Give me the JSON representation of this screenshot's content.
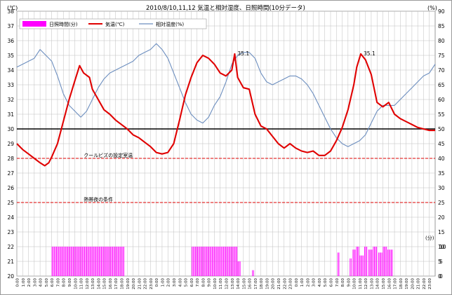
{
  "chart_data": {
    "type": "line",
    "title": "2010/8/10,11,12 気温と相対湿度、日照時間(10分データ)",
    "y_left_unit": "(℃)",
    "y_right_unit": "(%)",
    "sunshine_unit": "(分)",
    "ylim_left": [
      20,
      38
    ],
    "ylim_right": [
      0,
      90
    ],
    "sunshine_ylim": [
      0,
      10
    ],
    "sunshine_ticks": [
      0,
      5,
      10
    ],
    "y_left_ticks": [
      20,
      21,
      22,
      23,
      24,
      25,
      26,
      27,
      28,
      29,
      30,
      31,
      32,
      33,
      34,
      35,
      36,
      37,
      38
    ],
    "y_right_ticks": [
      0,
      5,
      10,
      15,
      20,
      25,
      30,
      35,
      40,
      45,
      50,
      55,
      60,
      65,
      70,
      75,
      80,
      85,
      90
    ],
    "x_ticks": [
      "0:00",
      "1:00",
      "2:00",
      "3:00",
      "4:00",
      "5:00",
      "6:00",
      "7:00",
      "8:00",
      "9:00",
      "10:00",
      "11:00",
      "12:00",
      "13:00",
      "14:00",
      "15:00",
      "16:00",
      "17:00",
      "18:00",
      "19:00",
      "20:00",
      "21:00",
      "22:00",
      "23:00",
      "0:00",
      "1:00",
      "2:00",
      "3:00",
      "4:00",
      "5:00",
      "6:00",
      "7:00",
      "8:00",
      "9:00",
      "10:00",
      "11:00",
      "12:00",
      "13:00",
      "14:00",
      "15:00",
      "16:00",
      "17:00",
      "18:00",
      "19:00",
      "20:00",
      "21:00",
      "22:00",
      "23:00",
      "0:00",
      "1:00",
      "2:00",
      "3:00",
      "4:00",
      "5:00",
      "6:00",
      "7:00",
      "8:00",
      "9:00",
      "10:00",
      "11:00",
      "12:00",
      "13:00",
      "14:00",
      "15:00",
      "16:00",
      "17:00",
      "18:00",
      "19:00",
      "20:00",
      "21:00",
      "22:00",
      "23:00"
    ],
    "grid": true,
    "legend_position": "top",
    "legend": [
      {
        "label": "日照時間(分)",
        "color": "#ff00ff",
        "kind": "bar"
      },
      {
        "label": "気温(℃)",
        "color": "#e00000",
        "kind": "line"
      },
      {
        "label": "相対湿度(%)",
        "color": "#6c8ebf",
        "kind": "line"
      }
    ],
    "reference_lines": [
      {
        "value": 30,
        "color": "#000000",
        "dashed": false,
        "label": ""
      },
      {
        "value": 28,
        "color": "#e00000",
        "dashed": true,
        "label": "クールビズの設定室温"
      },
      {
        "value": 25,
        "color": "#e00000",
        "dashed": true,
        "label": "熱帯夜の条件"
      }
    ],
    "annotations": [
      {
        "text": "35.1",
        "x": 37.5,
        "y": 35.1
      },
      {
        "text": "35.1",
        "x": 59.2,
        "y": 35.1
      }
    ],
    "temperature": {
      "name": "気温(℃)",
      "color": "#e00000",
      "x": [
        0,
        1,
        2,
        3,
        4,
        4.8,
        5.5,
        6,
        7,
        8,
        9,
        10,
        10.8,
        11.5,
        12.5,
        13,
        14,
        15,
        16,
        17,
        18,
        19,
        20,
        21,
        22,
        23,
        24,
        25,
        26,
        27,
        28,
        29,
        30,
        31,
        32,
        33,
        34,
        35,
        36,
        37,
        37.5,
        38,
        39,
        40,
        41,
        42,
        43,
        44,
        45,
        46,
        47,
        48,
        49,
        50,
        51,
        52,
        53,
        54,
        55,
        56,
        57,
        58,
        58.5,
        59.2,
        60,
        61,
        62,
        63,
        64,
        65,
        66,
        67,
        68,
        69,
        70,
        71,
        72
      ],
      "y": [
        29.0,
        28.6,
        28.3,
        28.0,
        27.7,
        27.5,
        27.7,
        28.1,
        29.0,
        30.5,
        32.0,
        33.3,
        34.3,
        33.8,
        33.5,
        32.7,
        32.0,
        31.3,
        31.0,
        30.6,
        30.3,
        30.0,
        29.6,
        29.4,
        29.1,
        28.8,
        28.4,
        28.3,
        28.4,
        29.0,
        30.6,
        32.3,
        33.5,
        34.5,
        35.0,
        34.8,
        34.4,
        33.8,
        33.6,
        34.0,
        35.1,
        33.5,
        32.8,
        32.7,
        31.0,
        30.2,
        30.0,
        29.5,
        29.0,
        28.7,
        29.0,
        28.7,
        28.5,
        28.4,
        28.5,
        28.2,
        28.2,
        28.5,
        29.2,
        30.1,
        31.3,
        33.0,
        34.2,
        35.1,
        34.7,
        33.7,
        31.8,
        31.5,
        31.8,
        31.0,
        30.7,
        30.5,
        30.3,
        30.1,
        30.0,
        29.9,
        29.9
      ]
    },
    "humidity": {
      "name": "相対湿度(%)",
      "color": "#6c8ebf",
      "x": [
        0,
        1,
        2,
        3,
        4,
        5,
        6,
        7,
        8,
        9,
        10,
        11,
        12,
        13,
        14,
        15,
        16,
        17,
        18,
        19,
        20,
        21,
        22,
        23,
        24,
        25,
        26,
        27,
        28,
        29,
        30,
        31,
        32,
        33,
        34,
        35,
        36,
        37,
        38,
        39,
        40,
        41,
        42,
        43,
        44,
        45,
        46,
        47,
        48,
        49,
        50,
        51,
        52,
        53,
        54,
        55,
        56,
        57,
        58,
        59,
        60,
        61,
        62,
        63,
        64,
        65,
        66,
        67,
        68,
        69,
        70,
        71,
        72
      ],
      "y": [
        71,
        72,
        73,
        74,
        77,
        75,
        73,
        68,
        62,
        58,
        56,
        54,
        56,
        60,
        64,
        67,
        69,
        70,
        71,
        72,
        73,
        75,
        76,
        77,
        79,
        77,
        74,
        69,
        64,
        59,
        55,
        53,
        52,
        54,
        58,
        61,
        66,
        72,
        75,
        76,
        76,
        74,
        69,
        66,
        65,
        66,
        67,
        68,
        68,
        67,
        65,
        62,
        58,
        54,
        50,
        47,
        45,
        44,
        45,
        46,
        48,
        52,
        56,
        58,
        58,
        58,
        60,
        62,
        64,
        66,
        68,
        69,
        72
      ]
    },
    "sunshine": {
      "name": "日照時間(分)",
      "color": "#ff00ff",
      "blocks": [
        {
          "start": 6.0,
          "end": 18.5,
          "value": 10
        },
        {
          "start": 30.1,
          "end": 38.0,
          "value": 10
        },
        {
          "start": 38.0,
          "end": 38.5,
          "value": 5
        },
        {
          "start": 40.5,
          "end": 40.7,
          "value": 2
        },
        {
          "start": 55.2,
          "end": 55.5,
          "value": 8
        },
        {
          "start": 57.3,
          "end": 57.6,
          "value": 6
        },
        {
          "start": 57.8,
          "end": 58.2,
          "value": 9
        },
        {
          "start": 58.4,
          "end": 58.8,
          "value": 10
        },
        {
          "start": 59.0,
          "end": 59.6,
          "value": 7
        },
        {
          "start": 59.8,
          "end": 60.3,
          "value": 10
        },
        {
          "start": 60.5,
          "end": 61.1,
          "value": 9
        },
        {
          "start": 61.3,
          "end": 62.0,
          "value": 10
        },
        {
          "start": 62.2,
          "end": 62.8,
          "value": 8
        },
        {
          "start": 63.0,
          "end": 63.6,
          "value": 10
        },
        {
          "start": 63.8,
          "end": 64.6,
          "value": 9
        }
      ]
    }
  }
}
